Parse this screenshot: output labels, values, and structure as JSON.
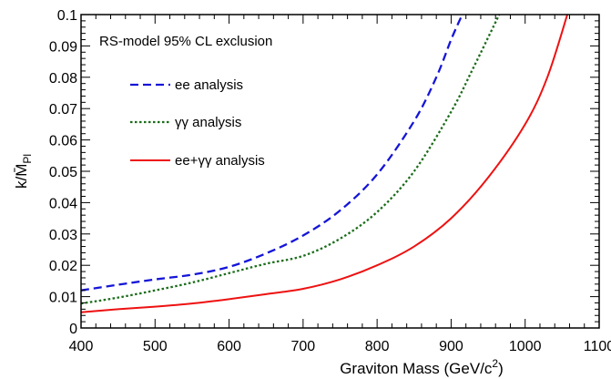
{
  "chart_data": {
    "type": "line",
    "title": "",
    "xlabel": "Graviton Mass (GeV/c²)",
    "ylabel": "k/M̄Pl",
    "xlim": [
      400,
      1100
    ],
    "ylim": [
      0,
      0.1
    ],
    "xticks": [
      400,
      500,
      600,
      700,
      800,
      900,
      1000,
      1100
    ],
    "yticks": [
      0,
      0.01,
      0.02,
      0.03,
      0.04,
      0.05,
      0.06,
      0.07,
      0.08,
      0.09,
      0.1
    ],
    "ytick_labels": [
      "0",
      "0.01",
      "0.02",
      "0.03",
      "0.04",
      "0.05",
      "0.06",
      "0.07",
      "0.08",
      "0.09",
      "0.1"
    ],
    "grid": false,
    "legend": {
      "placement": "top-left",
      "header": "RS-model 95% CL exclusion"
    },
    "series": [
      {
        "name": "ee analysis",
        "color": "#1515d8",
        "style": "dashed",
        "x": [
          400,
          450,
          500,
          550,
          600,
          650,
          700,
          750,
          800,
          850,
          880,
          900,
          915
        ],
        "y": [
          0.012,
          0.0138,
          0.0155,
          0.017,
          0.0195,
          0.0238,
          0.0295,
          0.0375,
          0.049,
          0.066,
          0.08,
          0.092,
          0.1
        ]
      },
      {
        "name": "γγ analysis",
        "color": "#1a6d1a",
        "style": "dotted",
        "x": [
          400,
          450,
          500,
          550,
          600,
          650,
          700,
          750,
          800,
          850,
          900,
          930,
          965
        ],
        "y": [
          0.0078,
          0.0097,
          0.012,
          0.0145,
          0.0175,
          0.0205,
          0.023,
          0.0285,
          0.037,
          0.05,
          0.069,
          0.083,
          0.1
        ]
      },
      {
        "name": "ee+γγ analysis",
        "color": "#ee1111",
        "style": "solid",
        "x": [
          400,
          450,
          500,
          550,
          600,
          650,
          700,
          750,
          800,
          850,
          900,
          950,
          1000,
          1030,
          1057
        ],
        "y": [
          0.005,
          0.006,
          0.0068,
          0.0078,
          0.0092,
          0.0108,
          0.0125,
          0.0155,
          0.02,
          0.026,
          0.035,
          0.048,
          0.065,
          0.08,
          0.1
        ]
      }
    ]
  }
}
